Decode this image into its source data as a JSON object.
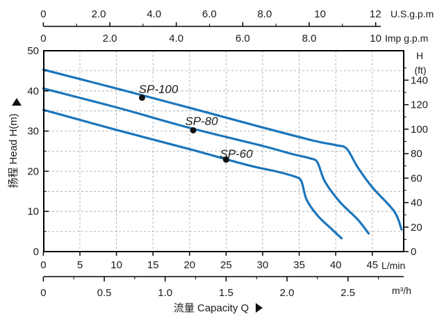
{
  "chart_data": {
    "type": "line",
    "x_axis": {
      "label": "流量 Capacity Q",
      "unit": "L/min",
      "range": [
        0,
        49
      ],
      "ticks": [
        "0",
        "5",
        "10",
        "15",
        "20",
        "25",
        "30",
        "35",
        "40",
        "45"
      ]
    },
    "x_axis_m3h": {
      "unit": "m³/h",
      "ticks": [
        "0",
        "0.5",
        "1.0",
        "1.5",
        "2.0",
        "2.5"
      ]
    },
    "x_axis_imp": {
      "unit": "Imp g.p.m",
      "ticks": [
        "0",
        "2.0",
        "4.0",
        "6.0",
        "8.0",
        "10"
      ]
    },
    "x_axis_us": {
      "unit": "U.S.g.p.m",
      "ticks": [
        "0",
        "2.0",
        "4.0",
        "6.0",
        "8.0",
        "10",
        "12"
      ]
    },
    "y_axis": {
      "label": "扬程 Head H(m)",
      "range": [
        0,
        50
      ],
      "ticks": [
        "0",
        "10",
        "20",
        "30",
        "40",
        "50"
      ]
    },
    "y_axis_ft": {
      "unit_top": "H",
      "unit": "(ft)",
      "ticks": [
        "0",
        "20",
        "40",
        "60",
        "80",
        "100",
        "120",
        "140"
      ]
    },
    "grid": true,
    "series": [
      {
        "name": "SP-100",
        "color": "#1b75bb",
        "marker": [
          13.5,
          38.3
        ],
        "points": [
          [
            0,
            45.3
          ],
          [
            10,
            40.6
          ],
          [
            20,
            35.8
          ],
          [
            30,
            30.9
          ],
          [
            37,
            27.6
          ],
          [
            40,
            26.5
          ],
          [
            41.5,
            25.6
          ],
          [
            43,
            21
          ],
          [
            45,
            16
          ],
          [
            48,
            10
          ],
          [
            49,
            5.5
          ]
        ]
      },
      {
        "name": "SP-80",
        "color": "#1b75bb",
        "marker": [
          20.5,
          30.2
        ],
        "points": [
          [
            0,
            40.6
          ],
          [
            10,
            35.9
          ],
          [
            20,
            30.8
          ],
          [
            30,
            26.3
          ],
          [
            34,
            24.3
          ],
          [
            36.5,
            23.2
          ],
          [
            37.5,
            22.2
          ],
          [
            38.5,
            17.5
          ],
          [
            40.5,
            12.5
          ],
          [
            43,
            8
          ],
          [
            44.5,
            4.5
          ]
        ]
      },
      {
        "name": "SP-60",
        "color": "#1b75bb",
        "marker": [
          25,
          22.9
        ],
        "points": [
          [
            0,
            35.3
          ],
          [
            10,
            30.3
          ],
          [
            20,
            25.5
          ],
          [
            28,
            21.5
          ],
          [
            32,
            19.9
          ],
          [
            34.5,
            18.6
          ],
          [
            35.3,
            17.5
          ],
          [
            36,
            13
          ],
          [
            37.5,
            9
          ],
          [
            39.5,
            5.5
          ],
          [
            40.8,
            3.3
          ]
        ]
      }
    ]
  }
}
